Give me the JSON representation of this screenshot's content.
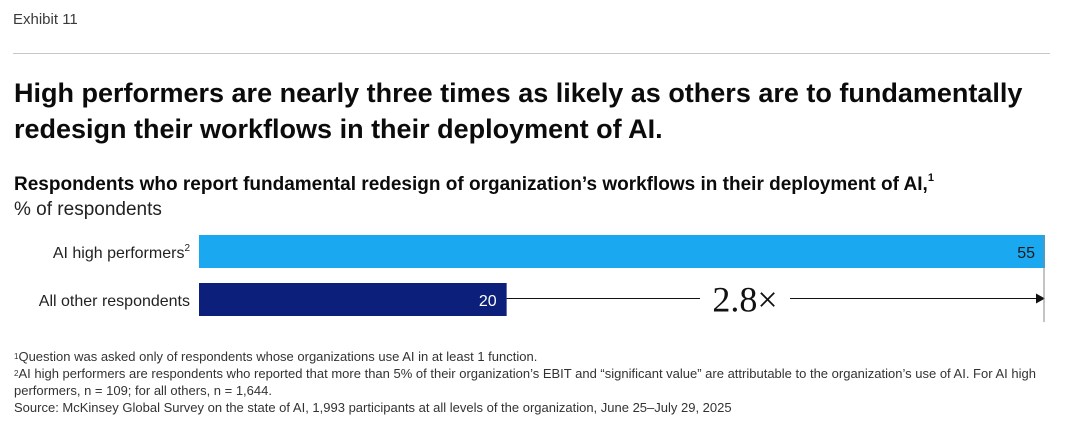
{
  "exhibit_label": "Exhibit 11",
  "headline": "High performers are nearly three times as likely as others are to fundamentally redesign their workflows in their deployment of AI.",
  "subtitle": "Respondents who report fundamental redesign of organization’s workflows in their deployment of AI,",
  "subtitle_note_marker": "1",
  "unit_label": "% of respondents",
  "colors": {
    "high": "#1aa9f0",
    "other": "#0c1f7a",
    "arrow": "#111111"
  },
  "chart_data": {
    "type": "bar",
    "orientation": "horizontal",
    "categories": [
      "AI high performers",
      "All other respondents"
    ],
    "category_note_markers": [
      "2",
      ""
    ],
    "values": [
      55,
      20
    ],
    "data_labels": [
      "55",
      "20"
    ],
    "xlim": [
      0,
      55
    ],
    "grid": false,
    "annotation": "2.8×"
  },
  "footnotes": [
    {
      "marker": "1",
      "text": "Question was asked only of respondents whose organizations use AI in at least 1 function."
    },
    {
      "marker": "2",
      "text": "AI high performers are respondents who reported that more than 5% of their organization’s EBIT and “significant value” are attributable to the organization’s use of AI. For AI high performers, n = 109; for all others, n = 1,644."
    }
  ],
  "source": "Source: McKinsey Global Survey on the state of AI, 1,993 participants at all levels of the organization, June 25–July 29, 2025"
}
